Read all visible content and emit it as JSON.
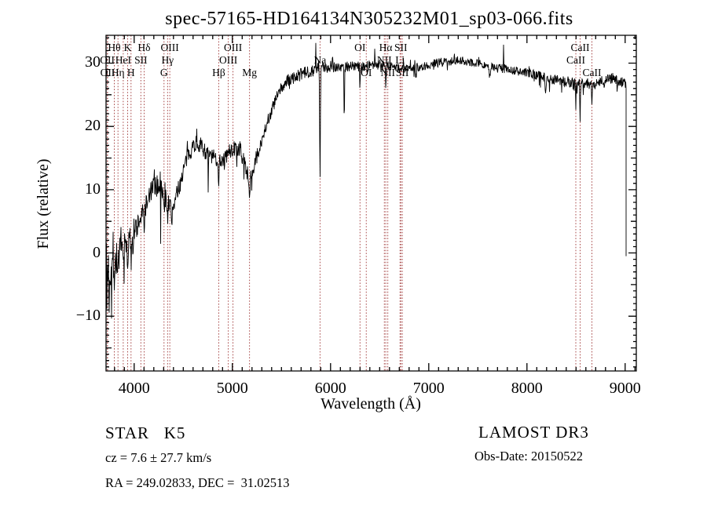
{
  "chart_data": {
    "type": "line",
    "title": "spec-57165-HD164134N305232M01_sp03-066.fits",
    "xlabel": "Wavelength (Å)",
    "ylabel": "Flux (relative)",
    "xlim": [
      3714,
      9114
    ],
    "ylim": [
      -18.65,
      34.4
    ],
    "xticks": [
      4000,
      5000,
      6000,
      7000,
      8000,
      9000
    ],
    "yticks": [
      -10,
      0,
      10,
      20,
      30
    ],
    "x_minor_step": 100,
    "y_minor_step": 1,
    "grid": false,
    "line_color": "#000000",
    "marker_line_color": "#a03838",
    "marked_lines": [
      {
        "label": "Hθ",
        "wavelength": 3797.9,
        "row": 1
      },
      {
        "label": "K",
        "wavelength": 3933.7,
        "row": 1
      },
      {
        "label": "Hδ",
        "wavelength": 4101.7,
        "row": 1
      },
      {
        "label": "OIII",
        "wavelength": 4363.2,
        "row": 1
      },
      {
        "label": "OIII",
        "wavelength": 5006.8,
        "row": 1
      },
      {
        "label": "OI",
        "wavelength": 6300.2,
        "row": 1
      },
      {
        "label": "Hα",
        "wavelength": 6562.8,
        "row": 1
      },
      {
        "label": "SII",
        "wavelength": 6716.4,
        "row": 1
      },
      {
        "label": "CaII",
        "wavelength": 8542.1,
        "row": 1
      },
      {
        "label": "OII",
        "wavelength": 3727.1,
        "row": 2
      },
      {
        "label": "HeI",
        "wavelength": 3889.0,
        "row": 2
      },
      {
        "label": "SII",
        "wavelength": 4068.6,
        "row": 2
      },
      {
        "label": "Hγ",
        "wavelength": 4340.5,
        "row": 2
      },
      {
        "label": "OIII",
        "wavelength": 4958.9,
        "row": 2
      },
      {
        "label": "Na",
        "wavelength": 5893.0,
        "row": 2
      },
      {
        "label": "NII",
        "wavelength": 6548.1,
        "row": 2
      },
      {
        "label": "Li",
        "wavelength": 6707.8,
        "row": 2
      },
      {
        "label": "CaII",
        "wavelength": 8498.0,
        "row": 2
      },
      {
        "label": "OII",
        "wavelength": 3729.9,
        "row": 3
      },
      {
        "label": "Hη",
        "wavelength": 3835.4,
        "row": 3
      },
      {
        "label": "H",
        "wavelength": 3968.5,
        "row": 3
      },
      {
        "label": "G",
        "wavelength": 4304.4,
        "row": 3
      },
      {
        "label": "Hβ",
        "wavelength": 4861.3,
        "row": 3
      },
      {
        "label": "Mg",
        "wavelength": 5175.3,
        "row": 3
      },
      {
        "label": "OI",
        "wavelength": 6363.8,
        "row": 3
      },
      {
        "label": "NII",
        "wavelength": 6583.5,
        "row": 3
      },
      {
        "label": "SII",
        "wavelength": 6730.8,
        "row": 3
      },
      {
        "label": "CaII",
        "wavelength": 8662.1,
        "row": 3
      }
    ],
    "spectrum": {
      "seed": 7,
      "clip_top": 34.1,
      "clip_bottom": -18.4,
      "end": {
        "wavelength": 9010,
        "drop_to_flux": -0.5
      },
      "envelope": [
        [
          3714,
          -1.5
        ],
        [
          3730,
          -2.5
        ],
        [
          3760,
          -2.5
        ],
        [
          3800,
          -1.5
        ],
        [
          3840,
          -0.5
        ],
        [
          3880,
          0.5
        ],
        [
          3920,
          1.2
        ],
        [
          3960,
          2.0
        ],
        [
          4000,
          3.5
        ],
        [
          4050,
          5.0
        ],
        [
          4100,
          6.5
        ],
        [
          4150,
          9.0
        ],
        [
          4200,
          10.5
        ],
        [
          4260,
          10.8
        ],
        [
          4300,
          9.5
        ],
        [
          4340,
          8.0
        ],
        [
          4385,
          7.0
        ],
        [
          4420,
          8.5
        ],
        [
          4460,
          10.5
        ],
        [
          4500,
          13.0
        ],
        [
          4550,
          15.5
        ],
        [
          4600,
          17.0
        ],
        [
          4650,
          17.5
        ],
        [
          4700,
          16.5
        ],
        [
          4760,
          15.5
        ],
        [
          4820,
          15.0
        ],
        [
          4870,
          14.5
        ],
        [
          4920,
          15.0
        ],
        [
          4970,
          16.0
        ],
        [
          5020,
          16.5
        ],
        [
          5070,
          16.0
        ],
        [
          5120,
          14.5
        ],
        [
          5160,
          12.5
        ],
        [
          5185,
          11.5
        ],
        [
          5220,
          13.5
        ],
        [
          5260,
          16.0
        ],
        [
          5300,
          18.0
        ],
        [
          5350,
          20.5
        ],
        [
          5400,
          22.5
        ],
        [
          5450,
          24.5
        ],
        [
          5500,
          26.0
        ],
        [
          5550,
          27.0
        ],
        [
          5600,
          27.5
        ],
        [
          5700,
          28.2
        ],
        [
          5800,
          28.8
        ],
        [
          5900,
          29.2
        ],
        [
          6000,
          29.6
        ],
        [
          6100,
          29.3
        ],
        [
          6200,
          29.6
        ],
        [
          6300,
          29.4
        ],
        [
          6400,
          29.8
        ],
        [
          6500,
          29.9
        ],
        [
          6600,
          29.6
        ],
        [
          6700,
          29.2
        ],
        [
          6800,
          29.1
        ],
        [
          6900,
          29.4
        ],
        [
          7000,
          29.7
        ],
        [
          7100,
          30.1
        ],
        [
          7200,
          30.3
        ],
        [
          7300,
          30.4
        ],
        [
          7400,
          30.3
        ],
        [
          7500,
          30.0
        ],
        [
          7600,
          29.6
        ],
        [
          7700,
          29.2
        ],
        [
          7800,
          29.1
        ],
        [
          7900,
          28.7
        ],
        [
          8000,
          28.5
        ],
        [
          8100,
          28.1
        ],
        [
          8200,
          27.6
        ],
        [
          8300,
          27.4
        ],
        [
          8400,
          27.1
        ],
        [
          8500,
          26.9
        ],
        [
          8600,
          26.8
        ],
        [
          8700,
          26.7
        ],
        [
          8800,
          27.3
        ],
        [
          8870,
          27.7
        ],
        [
          8930,
          27.2
        ],
        [
          9010,
          26.8
        ]
      ],
      "features": [
        [
          3722,
          7,
          2
        ],
        [
          3745,
          6,
          2
        ],
        [
          3770,
          5,
          1.5
        ],
        [
          3800,
          4,
          1.5
        ],
        [
          3835,
          3,
          2
        ],
        [
          3890,
          3,
          2
        ],
        [
          3934,
          4,
          3
        ],
        [
          3969,
          4,
          3
        ],
        [
          4026,
          2,
          2
        ],
        [
          4102,
          3,
          3
        ],
        [
          4144,
          2,
          2
        ],
        [
          4226,
          2,
          2
        ],
        [
          4270,
          8,
          1.5
        ],
        [
          4305,
          3,
          5
        ],
        [
          4340,
          2.5,
          3
        ],
        [
          4383,
          3,
          3
        ],
        [
          4455,
          2,
          2
        ],
        [
          4755,
          9,
          1.5
        ],
        [
          4861,
          3,
          4
        ],
        [
          4920,
          1.5,
          3
        ],
        [
          5170,
          2.5,
          8
        ],
        [
          5270,
          2,
          3
        ],
        [
          5893,
          18,
          3.5
        ],
        [
          6140,
          9,
          2.5
        ],
        [
          6300,
          2,
          3
        ],
        [
          6380,
          2.5,
          2
        ],
        [
          6563,
          3,
          3
        ],
        [
          6870,
          1.5,
          4
        ],
        [
          7190,
          1,
          4
        ],
        [
          7620,
          1.8,
          6
        ],
        [
          8190,
          2,
          4
        ],
        [
          8230,
          1.5,
          3
        ],
        [
          8498,
          3.5,
          3
        ],
        [
          8542,
          5.5,
          3
        ],
        [
          8662,
          3.2,
          3
        ],
        [
          8920,
          1.5,
          3
        ],
        [
          5850,
          -3.5,
          1.5
        ],
        [
          5880,
          -3,
          1.2
        ],
        [
          6020,
          -2.5,
          1.5
        ],
        [
          6450,
          -1.5,
          1
        ],
        [
          7510,
          -1.5,
          1
        ],
        [
          7762,
          -3.8,
          1.2
        ]
      ],
      "noise_amplitude": [
        [
          3714,
          4.5
        ],
        [
          3780,
          3.5
        ],
        [
          3850,
          2.8
        ],
        [
          3950,
          2.2
        ],
        [
          4100,
          1.8
        ],
        [
          4300,
          1.6
        ],
        [
          4500,
          1.4
        ],
        [
          4800,
          1.3
        ],
        [
          5100,
          1.3
        ],
        [
          5400,
          1.1
        ],
        [
          5700,
          1.0
        ],
        [
          6000,
          1.0
        ],
        [
          6300,
          0.8
        ],
        [
          6600,
          0.8
        ],
        [
          7000,
          0.7
        ],
        [
          7400,
          0.7
        ],
        [
          7800,
          0.7
        ],
        [
          8200,
          0.8
        ],
        [
          8600,
          0.9
        ],
        [
          9010,
          0.9
        ]
      ]
    }
  },
  "annotations": {
    "class_label": "STAR   K5",
    "survey": "LAMOST DR3",
    "cz": "cz = 7.6 ± 27.7 km/s",
    "obs_date": "Obs-Date: 20150522",
    "ra_dec": "RA = 249.02833, DEC =  31.02513"
  }
}
